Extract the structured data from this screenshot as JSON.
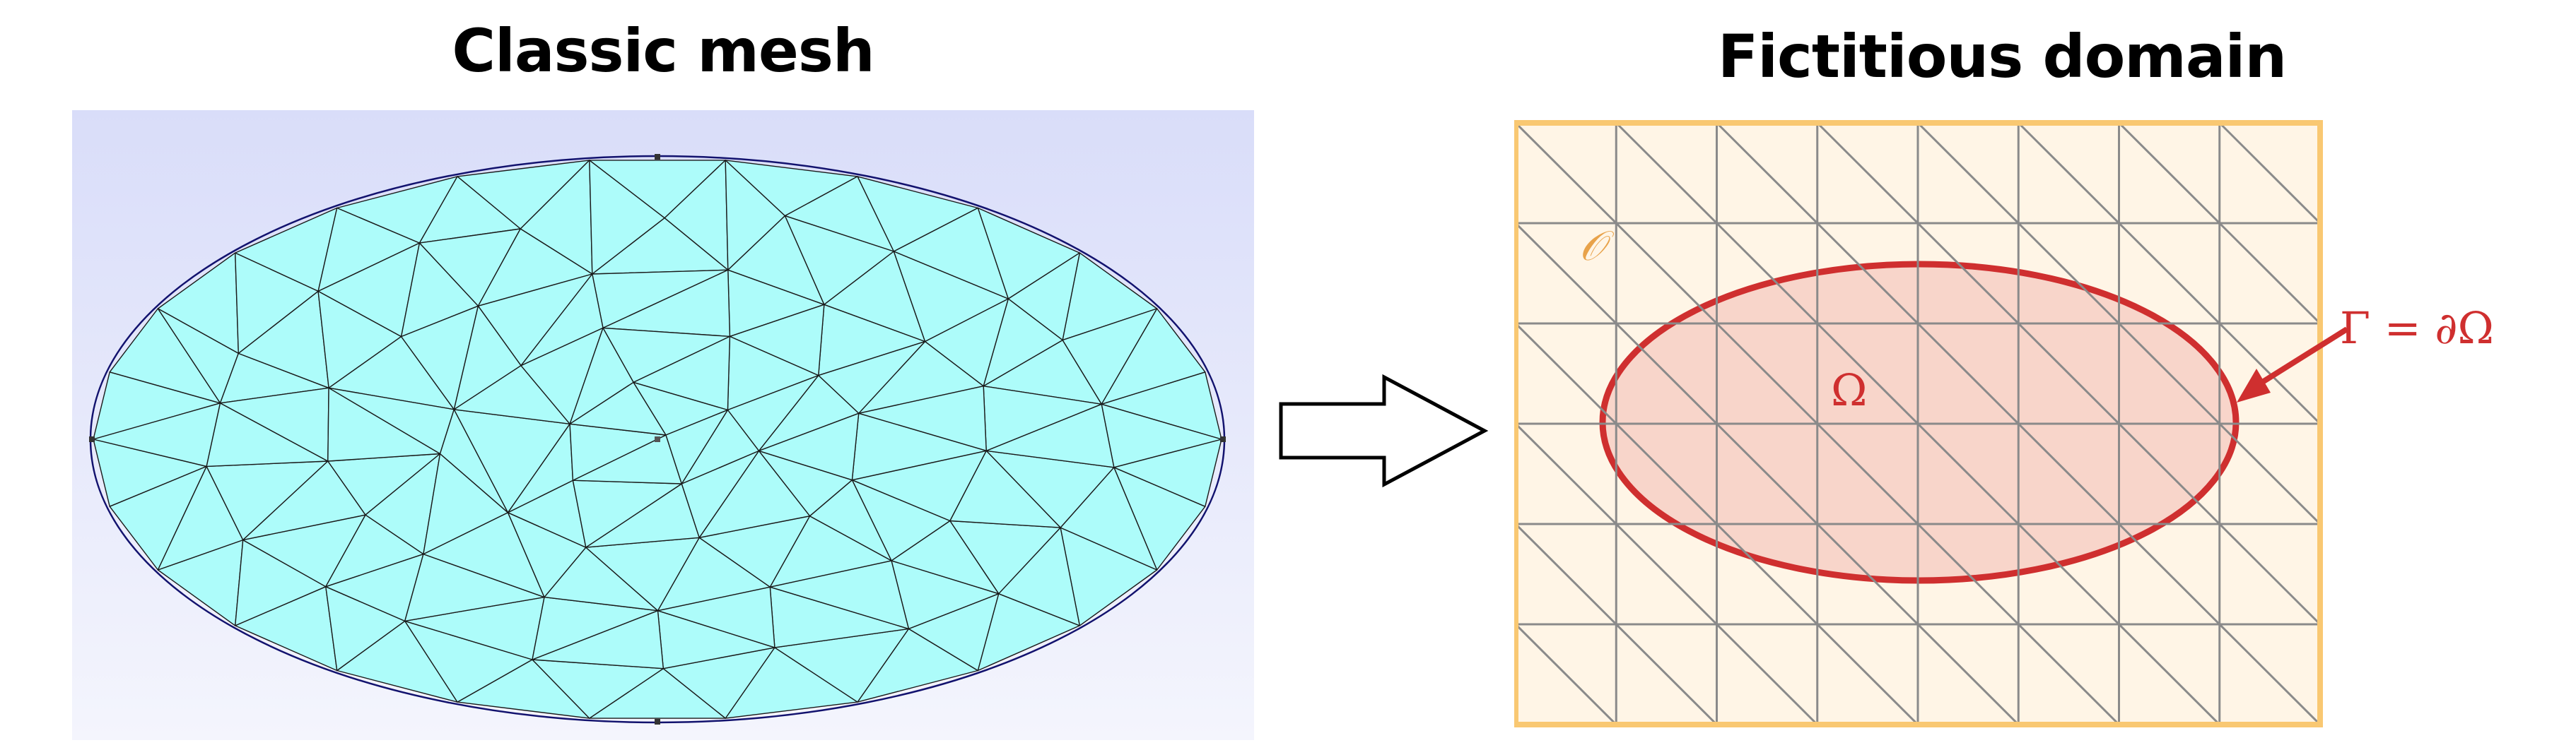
{
  "left_panel": {
    "title": "Classic mesh"
  },
  "right_panel": {
    "title": "Fictitious domain",
    "label_outer": "𝒪",
    "label_inner": "Ω",
    "label_boundary": "Γ = ∂Ω"
  },
  "colors": {
    "mesh_fill": "#adfcfa",
    "mesh_edge": "#1a1a1a",
    "ellipse_outline": "#12126e",
    "mesh_background": "#dcdff9",
    "grid_fill": "#fff5e6",
    "grid_border": "#f9c872",
    "grid_line": "#8a8a8a",
    "domain_fill": "#f7cfc4",
    "domain_stroke": "#cf2f2f",
    "outer_label": "#e8a24a"
  }
}
